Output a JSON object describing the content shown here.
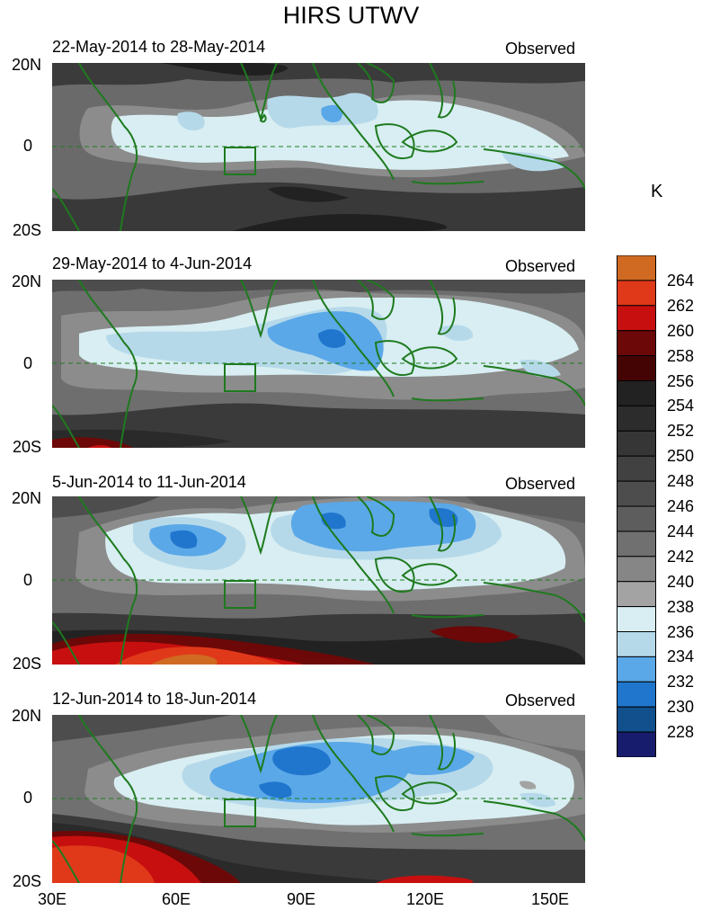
{
  "title": "HIRS UTWV",
  "panels": [
    {
      "period": "22-May-2014 to 28-May-2014",
      "tag": "Observed"
    },
    {
      "period": "29-May-2014 to 4-Jun-2014",
      "tag": "Observed"
    },
    {
      "period": "5-Jun-2014 to 11-Jun-2014",
      "tag": "Observed"
    },
    {
      "period": "12-Jun-2014 to 18-Jun-2014",
      "tag": "Observed"
    }
  ],
  "lat_labels": [
    "20N",
    "0",
    "20S"
  ],
  "lon_labels": [
    "30E",
    "60E",
    "90E",
    "120E",
    "150E"
  ],
  "colorbar": {
    "unit": "K",
    "labels": [
      "264",
      "262",
      "260",
      "258",
      "256",
      "254",
      "252",
      "250",
      "248",
      "246",
      "244",
      "242",
      "240",
      "238",
      "236",
      "234",
      "232",
      "230",
      "228"
    ],
    "colors": [
      "#d06a22",
      "#e0391a",
      "#c80f0f",
      "#6c0808",
      "#450404",
      "#222222",
      "#2c2c2c",
      "#363636",
      "#414141",
      "#4d4d4d",
      "#5d5d5d",
      "#707070",
      "#868686",
      "#a3a3a3",
      "#d8eef2",
      "#b6d9ea",
      "#5aa8e8",
      "#2076cc",
      "#11508c",
      "#181c6c"
    ]
  },
  "colors": {
    "coastline": "#1e7a1e",
    "equator": "#1e7a1e"
  }
}
